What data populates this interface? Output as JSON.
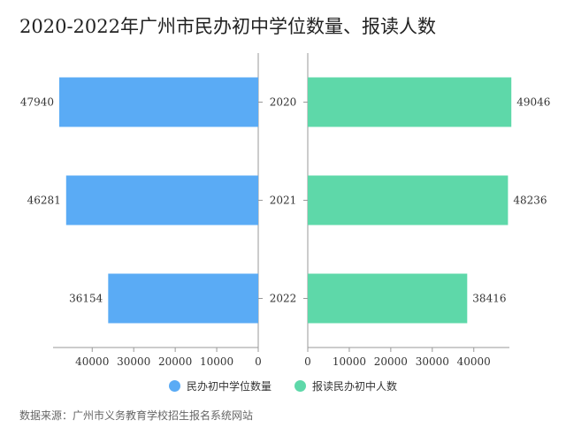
{
  "title": "2020-2022年广州市民办初中学位数量、报读人数",
  "source": "数据来源：广州市义务教育学校招生报名系统网站",
  "chart_data": {
    "type": "bar",
    "orientation": "horizontal-butterfly",
    "categories": [
      "2020",
      "2021",
      "2022"
    ],
    "series": [
      {
        "name": "民办初中学位数量",
        "values": [
          47940,
          46281,
          36154
        ],
        "color": "#5aabf5",
        "side": "left"
      },
      {
        "name": "报读民办初中人数",
        "values": [
          49046,
          48236,
          38416
        ],
        "color": "#5ed8a9",
        "side": "right"
      }
    ],
    "left_axis_ticks": [
      40000,
      30000,
      20000,
      10000,
      0
    ],
    "right_axis_ticks": [
      0,
      10000,
      20000,
      30000,
      40000
    ],
    "xlim": [
      0,
      50000
    ],
    "grid": false,
    "legend_position": "bottom"
  }
}
